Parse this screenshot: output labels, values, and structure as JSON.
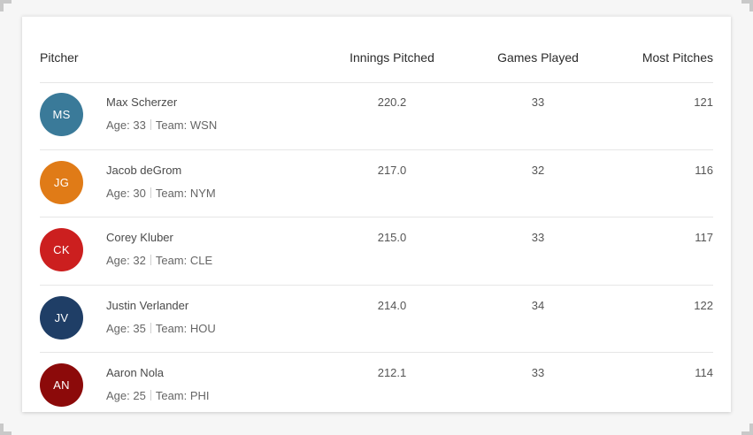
{
  "table": {
    "columns": {
      "pitcher": "Pitcher",
      "innings_pitched": "Innings Pitched",
      "games_played": "Games Played",
      "most_pitches": "Most Pitches"
    },
    "age_label": "Age:",
    "team_label": "Team:",
    "rows": [
      {
        "initials": "MS",
        "avatar_color": "#3a7a99",
        "name": "Max Scherzer",
        "age": "33",
        "team": "WSN",
        "innings_pitched": "220.2",
        "games_played": "33",
        "most_pitches": "121"
      },
      {
        "initials": "JG",
        "avatar_color": "#e07b17",
        "name": "Jacob deGrom",
        "age": "30",
        "team": "NYM",
        "innings_pitched": "217.0",
        "games_played": "32",
        "most_pitches": "116"
      },
      {
        "initials": "CK",
        "avatar_color": "#cc1f1f",
        "name": "Corey Kluber",
        "age": "32",
        "team": "CLE",
        "innings_pitched": "215.0",
        "games_played": "33",
        "most_pitches": "117"
      },
      {
        "initials": "JV",
        "avatar_color": "#1f3e66",
        "name": "Justin Verlander",
        "age": "35",
        "team": "HOU",
        "innings_pitched": "214.0",
        "games_played": "34",
        "most_pitches": "122"
      },
      {
        "initials": "AN",
        "avatar_color": "#8c0a0a",
        "name": "Aaron Nola",
        "age": "25",
        "team": "PHI",
        "innings_pitched": "212.1",
        "games_played": "33",
        "most_pitches": "114"
      }
    ]
  }
}
